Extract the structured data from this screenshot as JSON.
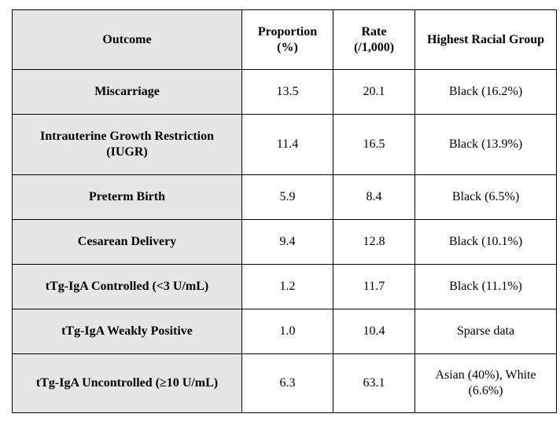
{
  "table": {
    "headers": {
      "outcome": "Outcome",
      "proportion": "Proportion (%)",
      "rate": "Rate (/1,000)",
      "group": "Highest Racial Group"
    },
    "rows": [
      {
        "outcome": "Miscarriage",
        "proportion": "13.5",
        "rate": "20.1",
        "group": "Black (16.2%)"
      },
      {
        "outcome": "Intrauterine Growth Restriction (IUGR)",
        "proportion": "11.4",
        "rate": "16.5",
        "group": "Black (13.9%)"
      },
      {
        "outcome": "Preterm Birth",
        "proportion": "5.9",
        "rate": "8.4",
        "group": "Black (6.5%)"
      },
      {
        "outcome": "Cesarean Delivery",
        "proportion": "9.4",
        "rate": "12.8",
        "group": "Black (10.1%)"
      },
      {
        "outcome": "tTg-IgA Controlled (<3 U/mL)",
        "proportion": "1.2",
        "rate": "11.7",
        "group": "Black (11.1%)"
      },
      {
        "outcome": "tTg-IgA Weakly Positive",
        "proportion": "1.0",
        "rate": "10.4",
        "group": "Sparse data"
      },
      {
        "outcome": "tTg-IgA Uncontrolled (≥10 U/mL)",
        "proportion": "6.3",
        "rate": "63.1",
        "group": "Asian (40%), White (6.6%)"
      }
    ]
  },
  "colors": {
    "header_background": "#e6e6e6",
    "label_background": "#e6e6e6",
    "border": "#000000"
  }
}
